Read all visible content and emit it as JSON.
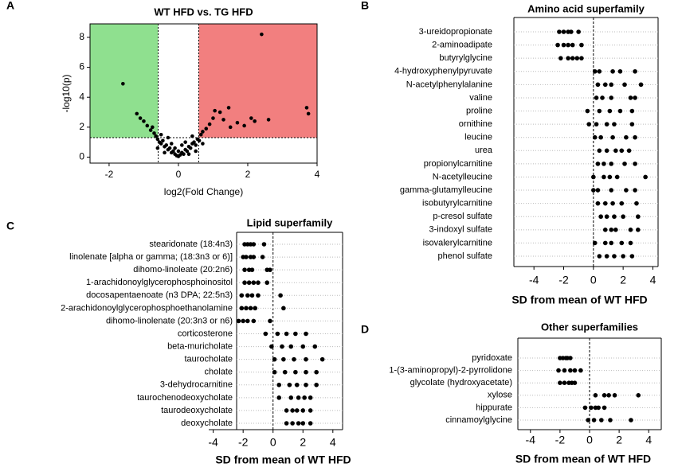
{
  "chart_data": [
    {
      "type": "scatter",
      "panel": "A",
      "title": "WT HFD vs. TG HFD",
      "xlabel": "log2(Fold Change)",
      "ylabel": "-log10(p)",
      "xlim": [
        -2.55,
        4
      ],
      "ylim": [
        -0.4,
        8.9
      ],
      "xticks": [
        -2,
        0,
        2,
        4
      ],
      "yticks": [
        0,
        2,
        4,
        6,
        8
      ],
      "thresholds": {
        "x": [
          -0.585,
          0.585
        ],
        "y": 1.3
      },
      "region_colors": [
        "#8fe08f",
        "#f27f7f"
      ],
      "color": "#000000",
      "x": [
        -1.6,
        -1.2,
        -1.1,
        -1.0,
        -0.9,
        -0.8,
        -0.75,
        -0.7,
        -0.65,
        -0.6,
        -0.55,
        -0.5,
        -0.45,
        -0.4,
        -0.35,
        -0.3,
        -0.25,
        -0.2,
        -0.15,
        -0.1,
        -0.05,
        0,
        0.05,
        0.1,
        0.15,
        0.2,
        0.25,
        0.3,
        0.35,
        0.4,
        0.45,
        0.5,
        0.55,
        0.6,
        0.65,
        0.7,
        0.8,
        0.9,
        1.0,
        1.05,
        1.2,
        1.3,
        1.45,
        1.5,
        1.7,
        1.9,
        2.1,
        2.2,
        2.4,
        2.6,
        3.7,
        3.75,
        -0.3,
        -0.2,
        0.1,
        0.2,
        -0.1,
        0.0,
        0.3,
        -0.4,
        -0.6,
        0.5,
        0.7,
        -0.5,
        0.4
      ],
      "y": [
        4.9,
        2.9,
        2.6,
        2.4,
        2.1,
        1.8,
        2.0,
        1.6,
        1.4,
        1.2,
        1.0,
        0.9,
        1.1,
        0.7,
        0.8,
        0.5,
        0.6,
        0.3,
        0.4,
        0.2,
        0.1,
        0.05,
        0.15,
        0.3,
        0.2,
        0.5,
        0.4,
        0.7,
        0.6,
        0.9,
        1.0,
        0.8,
        1.2,
        1.1,
        1.5,
        1.7,
        1.9,
        2.2,
        2.6,
        3.1,
        3.0,
        2.5,
        3.3,
        2.0,
        2.3,
        2.1,
        2.6,
        2.4,
        8.2,
        2.5,
        3.3,
        2.9,
        1.3,
        0.9,
        0.8,
        1.0,
        0.6,
        0.4,
        0.2,
        0.3,
        0.6,
        0.4,
        0.9,
        1.5,
        1.4
      ]
    },
    {
      "type": "strip",
      "panel": "B",
      "title": "Amino acid superfamily",
      "xlabel": "SD from mean of  WT HFD",
      "xlim": [
        -5.35,
        4.35
      ],
      "xticks": [
        -4,
        -2,
        0,
        2,
        4
      ],
      "refline": 0,
      "grid": true,
      "color": "#000000",
      "categories": [
        "3-ureidopropionate",
        "2-aminoadipate",
        "butyrylglycine",
        "4-hydroxyphenylpyruvate",
        "N-acetylphenylalanine",
        "valine",
        "proline",
        "ornithine",
        "leucine",
        "urea",
        "propionylcarnitine",
        "N-acetylleucine",
        "gamma-glutamylleucine",
        "isobutyrylcarnitine",
        "p-cresol sulfate",
        "3-indoxyl sulfate",
        "isovalerylcarnitine",
        "phenol sulfate"
      ],
      "values": [
        [
          -2.3,
          -2.0,
          -1.7,
          -1.5,
          -1.0
        ],
        [
          -2.4,
          -2.0,
          -1.7,
          -1.4,
          -0.8
        ],
        [
          -2.2,
          -1.7,
          -1.4,
          -1.1,
          -0.8
        ],
        [
          0.1,
          0.4,
          1.3,
          1.8,
          2.8
        ],
        [
          0.3,
          0.8,
          1.2,
          2.1,
          3.2
        ],
        [
          0.2,
          0.6,
          1.2,
          2.5,
          2.8
        ],
        [
          -0.4,
          0.4,
          1.1,
          1.8,
          2.6
        ],
        [
          -0.3,
          0.2,
          0.9,
          1.4,
          2.6
        ],
        [
          0.1,
          0.5,
          1.3,
          2.2,
          2.8
        ],
        [
          0.4,
          0.9,
          1.5,
          1.9,
          2.4
        ],
        [
          0.3,
          0.7,
          1.2,
          2.1,
          2.8
        ],
        [
          0.0,
          0.7,
          1.1,
          1.6,
          3.5
        ],
        [
          0.0,
          0.3,
          1.2,
          2.2,
          2.8
        ],
        [
          0.3,
          0.8,
          1.3,
          1.9,
          2.9
        ],
        [
          0.5,
          0.9,
          1.4,
          2.0,
          3.0
        ],
        [
          0.8,
          1.2,
          1.5,
          2.5,
          3.0
        ],
        [
          0.1,
          0.8,
          1.2,
          1.9,
          2.5
        ],
        [
          0.4,
          0.9,
          1.4,
          2.0,
          2.6
        ]
      ]
    },
    {
      "type": "strip",
      "panel": "C",
      "title": "Lipid superfamily",
      "xlabel": "SD from mean of  WT HFD",
      "xlim": [
        -4.3,
        4.65
      ],
      "xticks": [
        -4,
        -2,
        0,
        2,
        4
      ],
      "refline": 0,
      "grid": true,
      "color": "#000000",
      "categories": [
        "stearidonate (18:4n3)",
        "linolenate [alpha or gamma; (18:3n3 or 6)]",
        "dihomo-linoleate (20:2n6)",
        "1-arachidonoylglycerophosphoinositol",
        "docosapentaenoate (n3 DPA; 22:5n3)",
        "2-arachidonoylglycerophosphoethanolamine",
        "dihomo-linolenate (20:3n3 or n6)",
        "corticosterone",
        "beta-muricholate",
        "taurocholate",
        "cholate",
        "3-dehydrocarnitine",
        "taurochenodeoxycholate",
        "taurodeoxycholate",
        "deoxycholate"
      ],
      "values": [
        [
          -1.9,
          -1.7,
          -1.5,
          -1.3,
          -0.6
        ],
        [
          -2.0,
          -1.8,
          -1.5,
          -1.3,
          -0.7
        ],
        [
          -1.9,
          -1.6,
          -1.4,
          -0.4,
          -0.2
        ],
        [
          -1.9,
          -1.6,
          -1.3,
          -1.0,
          -0.4
        ],
        [
          -2.1,
          -1.7,
          -1.4,
          -1.0,
          0.5
        ],
        [
          -2.1,
          -1.8,
          -1.5,
          -1.2,
          0.7
        ],
        [
          -2.3,
          -2.0,
          -1.7,
          -1.3,
          -0.2
        ],
        [
          -0.5,
          0.3,
          0.9,
          1.5,
          2.2
        ],
        [
          -0.1,
          0.6,
          1.2,
          2.0,
          2.8
        ],
        [
          0.1,
          0.7,
          1.4,
          2.2,
          3.3
        ],
        [
          0.1,
          0.8,
          1.5,
          2.2,
          2.9
        ],
        [
          0.4,
          1.1,
          1.6,
          2.2,
          2.9
        ],
        [
          0.4,
          1.2,
          1.7,
          2.1,
          2.5
        ],
        [
          0.9,
          1.3,
          1.6,
          2.0,
          2.5
        ],
        [
          0.9,
          1.3,
          1.7,
          2.0,
          2.5
        ]
      ]
    },
    {
      "type": "strip",
      "panel": "D",
      "title": "Other superfamilies",
      "xlabel": "SD from mean of  WT HFD",
      "xlim": [
        -4.85,
        4.85
      ],
      "xticks": [
        -4,
        -2,
        0,
        2,
        4
      ],
      "refline": 0,
      "grid": true,
      "color": "#000000",
      "categories": [
        "pyridoxate",
        "1-(3-aminopropyl)-2-pyrrolidone",
        "glycolate (hydroxyacetate)",
        "xylose",
        "hippurate",
        "cinnamoylglycine"
      ],
      "values": [
        [
          -2.0,
          -1.8,
          -1.6,
          -1.5,
          -1.3
        ],
        [
          -2.1,
          -1.7,
          -1.3,
          -1.0,
          -0.6
        ],
        [
          -2.0,
          -1.7,
          -1.4,
          -1.2,
          -1.0
        ],
        [
          0.4,
          1.0,
          1.3,
          1.7,
          3.3
        ],
        [
          -0.3,
          0.1,
          0.4,
          0.6,
          1.0
        ],
        [
          -0.1,
          0.3,
          0.8,
          1.4,
          2.8
        ]
      ]
    }
  ]
}
